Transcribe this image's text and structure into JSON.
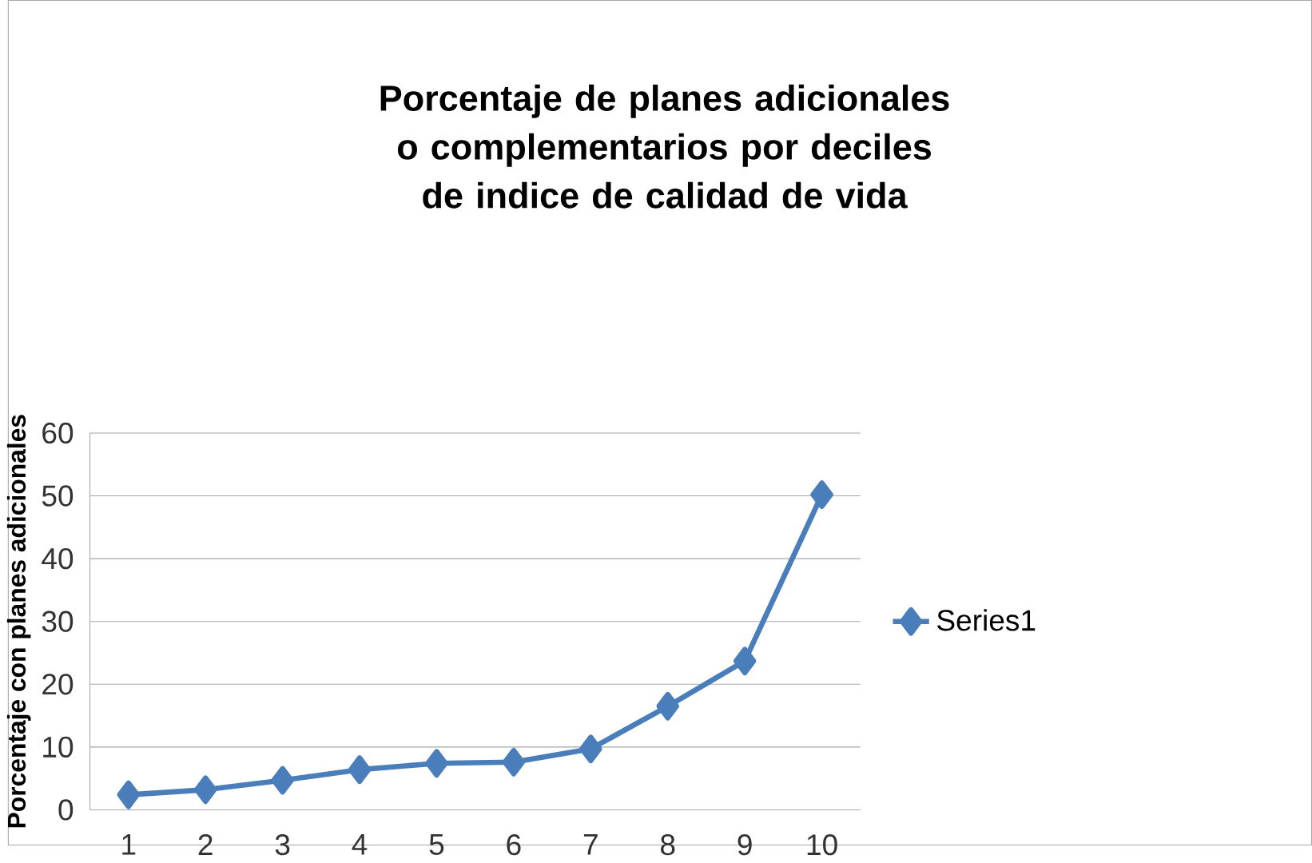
{
  "chart_data": {
    "type": "line",
    "title": "Porcentaje de planes adicionales o complementarios por deciles de indice de calidad de vida",
    "ylabel": "Porcentaje con planes adicionales",
    "categories": [
      "1",
      "2",
      "3",
      "4",
      "5",
      "6",
      "7",
      "8",
      "9",
      "10"
    ],
    "series": [
      {
        "name": "Series1",
        "color": "#4a7ebb",
        "values": [
          2.4,
          3.2,
          4.7,
          6.4,
          7.4,
          7.6,
          9.7,
          16.5,
          23.7,
          50.2
        ]
      }
    ],
    "ylim": [
      0,
      60
    ],
    "yticks": [
      0,
      10,
      20,
      30,
      40,
      50,
      60
    ],
    "grid": "y",
    "legend": "right",
    "marker": "diamond",
    "line_style": "solid"
  }
}
